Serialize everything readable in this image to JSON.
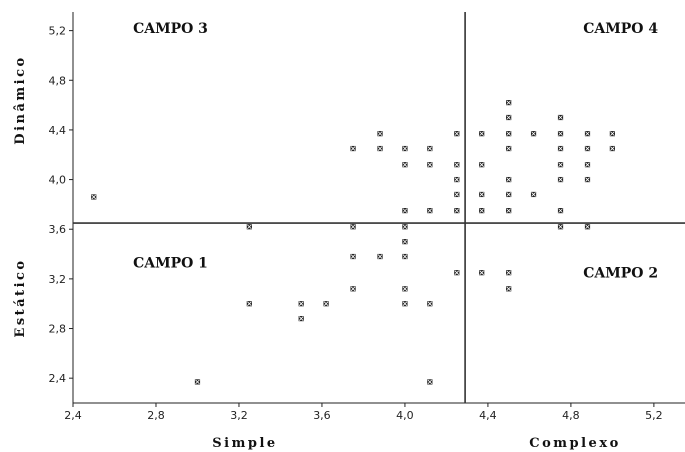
{
  "chart_data": {
    "type": "scatter",
    "title": "",
    "xlim": [
      2.4,
      5.35
    ],
    "ylim": [
      2.2,
      5.35
    ],
    "x_ticks": [
      "2,4",
      "2,8",
      "3,2",
      "3,6",
      "4,0",
      "4,4",
      "4,8",
      "5,2"
    ],
    "y_ticks": [
      "2,4",
      "2,8",
      "3,2",
      "3,6",
      "4,0",
      "4,4",
      "4,8",
      "5,2"
    ],
    "x_tick_values": [
      2.4,
      2.8,
      3.2,
      3.6,
      4.0,
      4.4,
      4.8,
      5.2
    ],
    "y_tick_values": [
      2.4,
      2.8,
      3.2,
      3.6,
      4.0,
      4.4,
      4.8,
      5.2
    ],
    "xlabel_left": "Simple",
    "xlabel_right": "Complexo",
    "ylabel_top": "Dinâmico",
    "ylabel_bottom": "Estático",
    "divider_x": 4.29,
    "divider_y": 3.65,
    "grid": false,
    "fields": [
      {
        "label": "CAMPO 3",
        "x": 2.87,
        "y": 5.18
      },
      {
        "label": "CAMPO 4",
        "x": 5.04,
        "y": 5.18
      },
      {
        "label": "CAMPO 1",
        "x": 2.87,
        "y": 3.29
      },
      {
        "label": "CAMPO 2",
        "x": 5.04,
        "y": 3.21
      }
    ],
    "points": [
      [
        2.5,
        3.86
      ],
      [
        3.0,
        2.37
      ],
      [
        3.25,
        3.62
      ],
      [
        3.25,
        3.0
      ],
      [
        3.5,
        3.0
      ],
      [
        3.5,
        2.88
      ],
      [
        3.62,
        3.0
      ],
      [
        3.75,
        4.25
      ],
      [
        3.75,
        3.62
      ],
      [
        3.75,
        3.38
      ],
      [
        3.75,
        3.12
      ],
      [
        3.88,
        4.37
      ],
      [
        3.88,
        4.25
      ],
      [
        3.88,
        3.38
      ],
      [
        4.0,
        4.25
      ],
      [
        4.0,
        4.12
      ],
      [
        4.0,
        3.75
      ],
      [
        4.0,
        3.62
      ],
      [
        4.0,
        3.5
      ],
      [
        4.0,
        3.38
      ],
      [
        4.0,
        3.12
      ],
      [
        4.0,
        3.0
      ],
      [
        4.12,
        4.25
      ],
      [
        4.12,
        4.12
      ],
      [
        4.12,
        3.75
      ],
      [
        4.12,
        3.0
      ],
      [
        4.12,
        2.37
      ],
      [
        4.25,
        4.37
      ],
      [
        4.25,
        4.12
      ],
      [
        4.25,
        4.0
      ],
      [
        4.25,
        3.88
      ],
      [
        4.25,
        3.75
      ],
      [
        4.25,
        3.25
      ],
      [
        4.37,
        4.37
      ],
      [
        4.37,
        4.12
      ],
      [
        4.37,
        3.88
      ],
      [
        4.37,
        3.75
      ],
      [
        4.37,
        3.25
      ],
      [
        4.5,
        4.62
      ],
      [
        4.5,
        4.5
      ],
      [
        4.5,
        4.37
      ],
      [
        4.5,
        4.25
      ],
      [
        4.5,
        4.0
      ],
      [
        4.5,
        3.88
      ],
      [
        4.5,
        3.75
      ],
      [
        4.5,
        3.25
      ],
      [
        4.5,
        3.12
      ],
      [
        4.62,
        4.37
      ],
      [
        4.62,
        3.88
      ],
      [
        4.75,
        4.5
      ],
      [
        4.75,
        4.37
      ],
      [
        4.75,
        4.25
      ],
      [
        4.75,
        4.12
      ],
      [
        4.75,
        4.0
      ],
      [
        4.75,
        3.75
      ],
      [
        4.75,
        3.62
      ],
      [
        4.88,
        4.37
      ],
      [
        4.88,
        4.25
      ],
      [
        4.88,
        4.12
      ],
      [
        4.88,
        4.0
      ],
      [
        4.88,
        3.62
      ],
      [
        5.0,
        4.37
      ],
      [
        5.0,
        4.25
      ]
    ]
  }
}
